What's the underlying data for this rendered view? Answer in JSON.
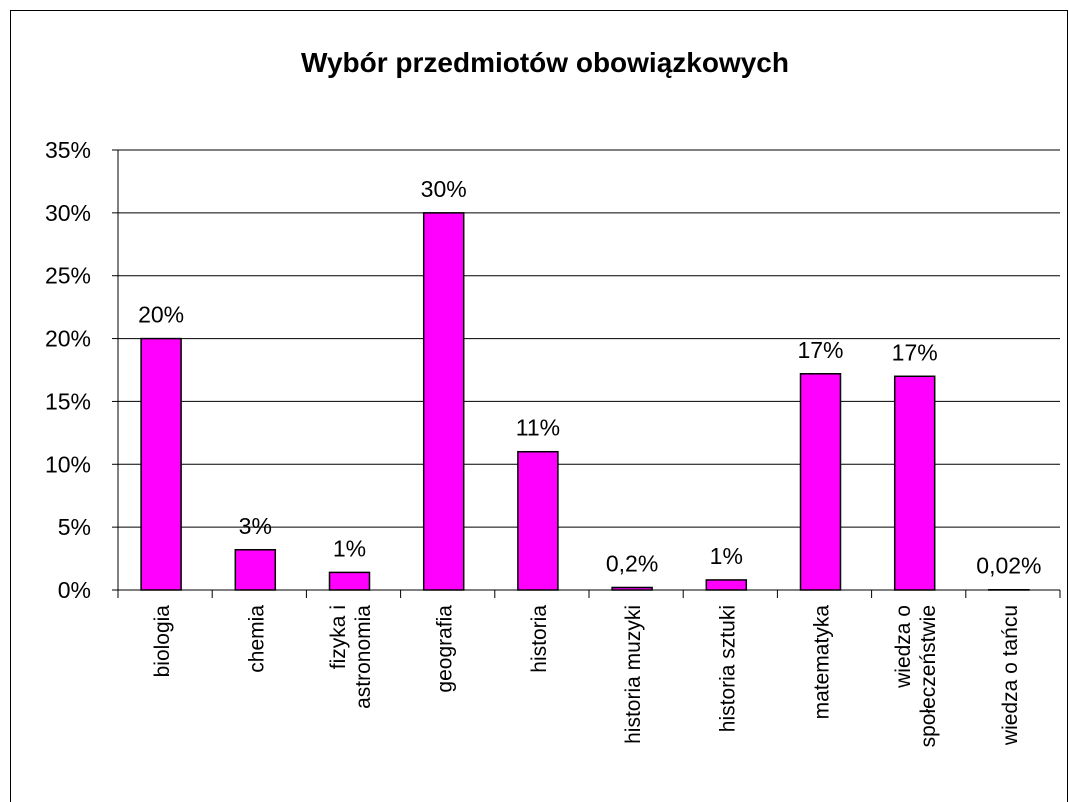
{
  "chart_data": {
    "type": "bar",
    "title": "Wybór przedmiotów obowiązkowych",
    "categories": [
      "biologia",
      "chemia",
      "fizyka i\nastronomia",
      "geografia",
      "historia",
      "historia muzyki",
      "historia sztuki",
      "matematyka",
      "wiedza o\nspołeczeństwie",
      "wiedza o tańcu"
    ],
    "values": [
      20,
      3.2,
      1.4,
      30,
      11,
      0.2,
      0.8,
      17.2,
      17,
      0.02
    ],
    "value_labels": [
      "20%",
      "3%",
      "1%",
      "30%",
      "11%",
      "0,2%",
      "1%",
      "17%",
      "17%",
      "0,02%"
    ],
    "color": "#ff00ff",
    "ylim": [
      0,
      35
    ],
    "yticks": [
      {
        "value": 0,
        "label": "0%"
      },
      {
        "value": 5,
        "label": "5%"
      },
      {
        "value": 10,
        "label": "10%"
      },
      {
        "value": 15,
        "label": "15%"
      },
      {
        "value": 20,
        "label": "20%"
      },
      {
        "value": 25,
        "label": "25%"
      },
      {
        "value": 30,
        "label": "30%"
      },
      {
        "value": 35,
        "label": "35%"
      }
    ],
    "grid": true
  }
}
